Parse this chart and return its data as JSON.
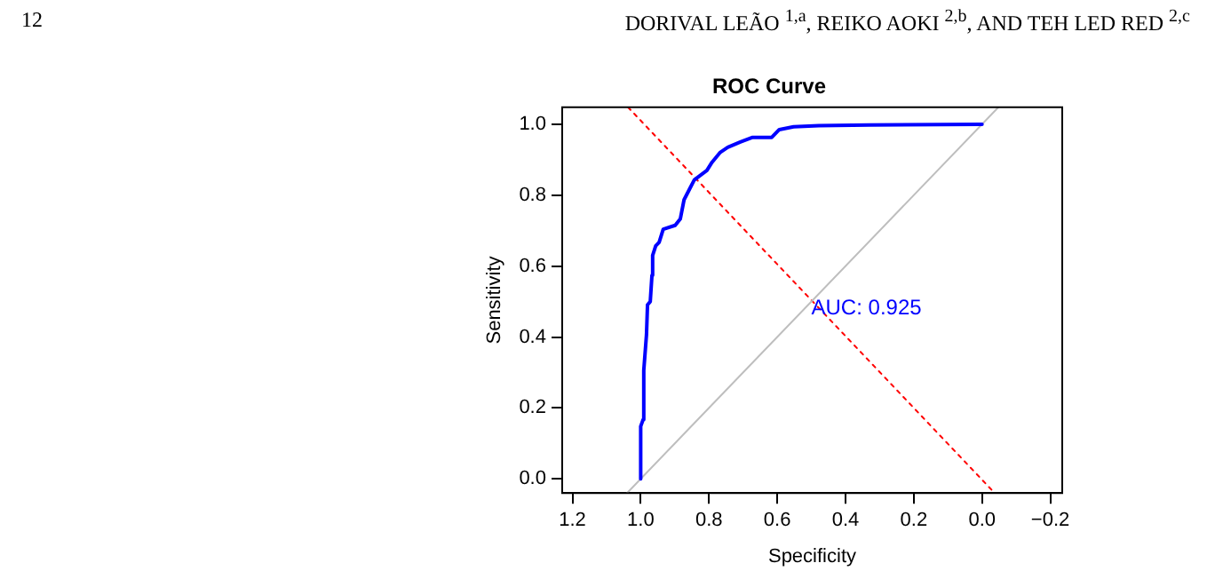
{
  "chart_data": {
    "type": "line",
    "title": "ROC Curve",
    "xlabel": "Specificity",
    "ylabel": "Sensitivity",
    "annotations": [
      "12",
      "DORIVAL LEÃO $^{1,a}$, REIKO AOKI $^{2,b}$, AND TEH LED RED $^{2,c}$",
      {
        "text": "AUC: 0.925",
        "x": 0.5,
        "y": 0.48
      }
    ],
    "series": [
      {
        "color": "#0000ff",
        "x": [
          1.0,
          1.0,
          0.993,
          0.991,
          0.983,
          0.98,
          0.972,
          0.967,
          0.965,
          0.956,
          0.946,
          0.934,
          0.899,
          0.884,
          0.873,
          0.856,
          0.843,
          0.825,
          0.806,
          0.791,
          0.768,
          0.745,
          0.708,
          0.672,
          0.616,
          0.594,
          0.552,
          0.478,
          0.33,
          0.0
        ],
        "values": [
          0,
          0.148,
          0.167,
          0.306,
          0.407,
          0.491,
          0.5,
          0.574,
          0.63,
          0.657,
          0.667,
          0.704,
          0.715,
          0.733,
          0.787,
          0.819,
          0.843,
          0.856,
          0.87,
          0.893,
          0.92,
          0.935,
          0.95,
          0.963,
          0.963,
          0.985,
          0.993,
          0.996,
          0.998,
          1.0
        ]
      },
      {
        "color": "#bebebe",
        "x": [
          1.04,
          -0.048
        ],
        "values": [
          -0.04,
          1.048
        ]
      },
      {
        "color": "#ff0000",
        "line_style": "dotted",
        "x": [
          1.037,
          -0.037
        ],
        "values": [
          1.048,
          -0.04
        ]
      }
    ],
    "xlim": [
      1.23,
      -0.235
    ],
    "ylim": [
      -0.04,
      1.048
    ],
    "xticks": [
      {
        "value": 1.2,
        "label": "1.2"
      },
      {
        "value": 1,
        "label": "1.0"
      },
      {
        "value": 0.8,
        "label": "0.8"
      },
      {
        "value": 0.6,
        "label": "0.6"
      },
      {
        "value": 0.4,
        "label": "0.4"
      },
      {
        "value": 0.2,
        "label": "0.2"
      },
      {
        "value": 0,
        "label": "0.0"
      },
      {
        "value": -0.2,
        "label": "−0.2"
      }
    ],
    "yticks": [
      {
        "value": 0,
        "label": "0.0"
      },
      {
        "value": 0.2,
        "label": "0.2"
      },
      {
        "value": 0.4,
        "label": "0.4"
      },
      {
        "value": 0.6,
        "label": "0.6"
      },
      {
        "value": 0.8,
        "label": "0.8"
      },
      {
        "value": 1,
        "label": "1.0"
      }
    ],
    "grid": false,
    "legend": false,
    "marker": "none",
    "line_style": "solid"
  }
}
